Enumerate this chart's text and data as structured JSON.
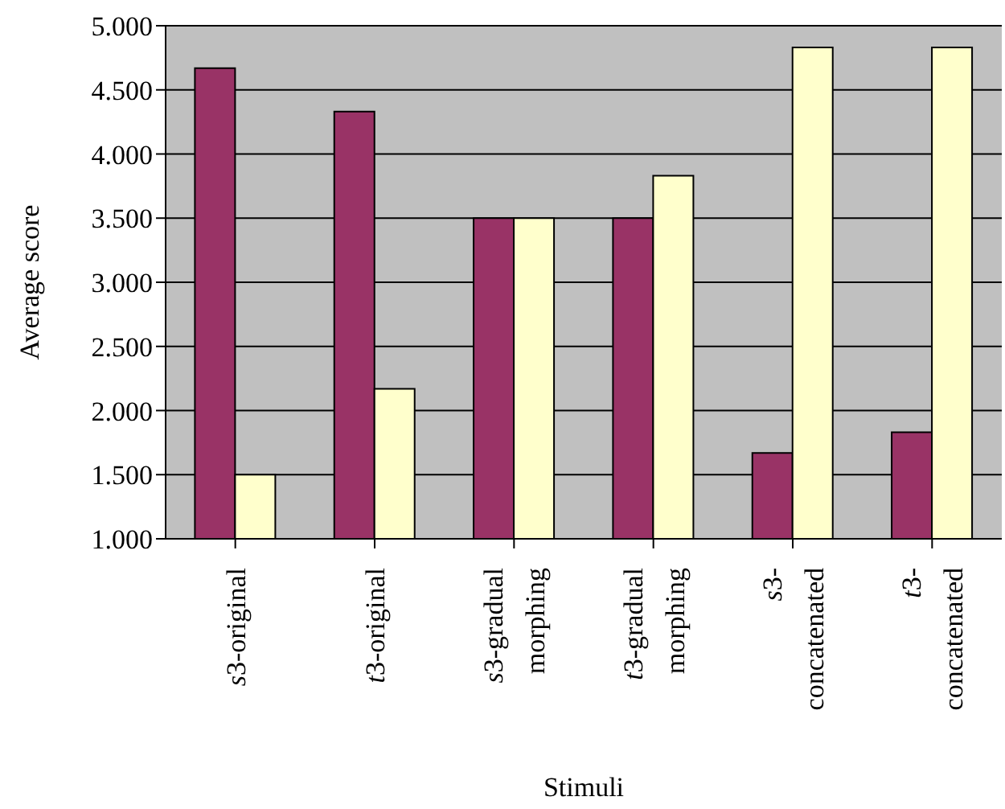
{
  "chart_data": {
    "type": "bar",
    "xlabel": "Stimuli",
    "ylabel": "Average score",
    "categories": [
      "s3-original",
      "t3-original",
      "s3-gradual morphing",
      "t3-gradual morphing",
      "s3-concatenated",
      "t3-concatenated"
    ],
    "series": [
      {
        "color": "#993366",
        "values": [
          4.67,
          4.33,
          3.5,
          3.5,
          1.67,
          1.83
        ]
      },
      {
        "color": "#ffffcc",
        "values": [
          1.5,
          2.17,
          3.5,
          3.83,
          4.83,
          4.83
        ]
      }
    ],
    "ylim": [
      1,
      5
    ],
    "yticks": [
      {
        "value": 1,
        "label": "1.000"
      },
      {
        "value": 1.5,
        "label": "1.500"
      },
      {
        "value": 2,
        "label": "2.000"
      },
      {
        "value": 2.5,
        "label": "2.500"
      },
      {
        "value": 3,
        "label": "3.000"
      },
      {
        "value": 3.5,
        "label": "3.500"
      },
      {
        "value": 4,
        "label": "4.000"
      },
      {
        "value": 4.5,
        "label": "4.500"
      },
      {
        "value": 5,
        "label": "5.000"
      }
    ],
    "grid": "y",
    "legend": false
  }
}
